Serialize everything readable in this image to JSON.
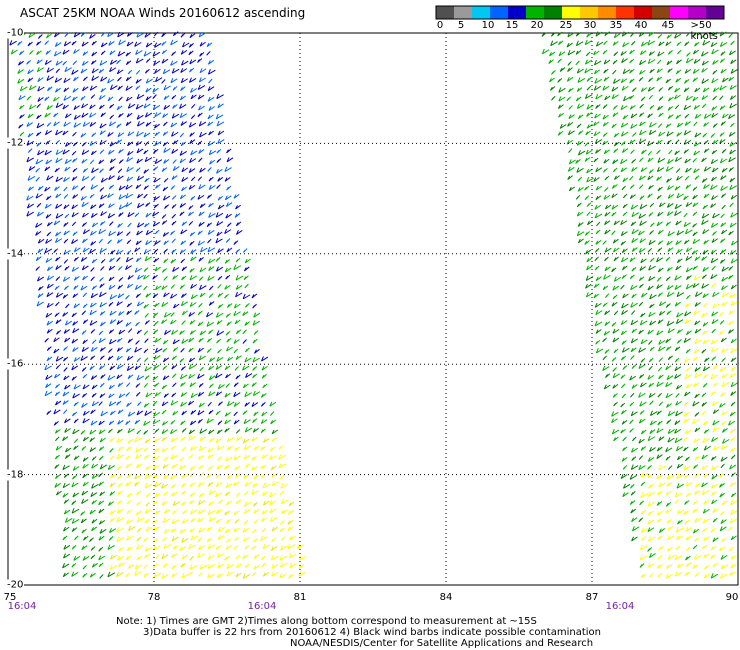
{
  "title": "ASCAT 25KM NOAA Winds 20160612 ascending",
  "color_scale": {
    "labels": [
      "0",
      "5",
      "10",
      "15",
      "20",
      "25",
      "30",
      "35",
      "40",
      "45",
      ">50 knots"
    ],
    "colors": [
      "#505050",
      "#9a9a9a",
      "#00c8f0",
      "#0064ff",
      "#0000c8",
      "#00b400",
      "#008200",
      "#ffff00",
      "#ffc800",
      "#ff8c00",
      "#ff3200",
      "#d20000",
      "#8c4614",
      "#ff00ff",
      "#b400c8",
      "#640096"
    ]
  },
  "map": {
    "lon_ticks": [
      "75",
      "78",
      "81",
      "84",
      "87",
      "90"
    ],
    "lat_ticks": [
      "-10",
      "-12",
      "-14",
      "-16",
      "-18",
      "-20"
    ],
    "lon_range": [
      75,
      90
    ],
    "lat_range": [
      -20,
      -10
    ],
    "grid": true
  },
  "swath_times": [
    "16:04",
    "16:04",
    "16:04"
  ],
  "notes": {
    "line1": "Note: 1) Times are GMT 2)Times along bottom correspond to measurement at ~15S",
    "line2": "3)Data buffer is 22 hrs from 20160612 4) Black wind barbs indicate possible contamination",
    "line3": "NOAA/NESDIS/Center for Satellite Applications and Research"
  }
}
